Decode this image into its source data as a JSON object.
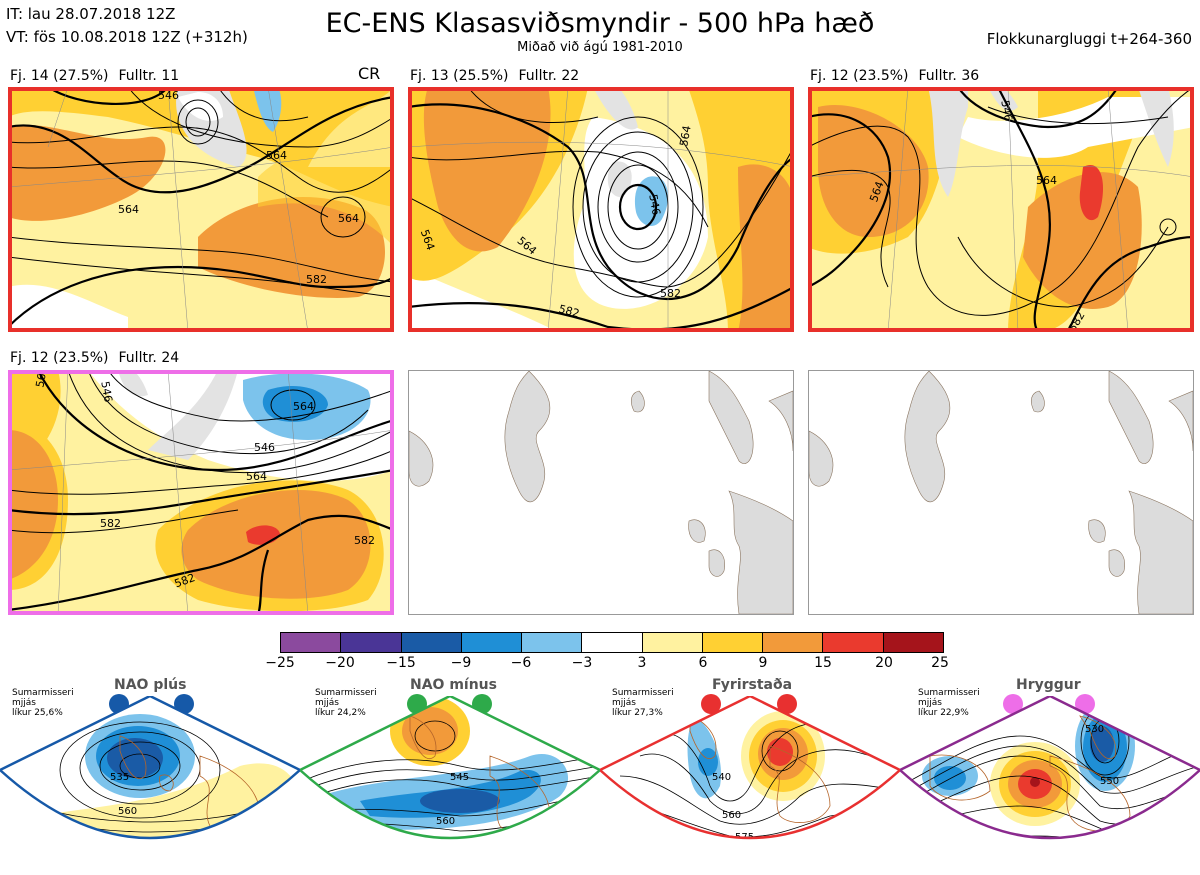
{
  "header": {
    "it_line": "IT: lau 28.07.2018 12Z",
    "vt_line": "VT: fös 10.08.2018 12Z  (+312h)",
    "title": "EC-ENS Klasasviðsmyndir - 500 hPa hæð",
    "subtitle": "Miðað við ágú 1981-2010",
    "window": "Flokkunargluggi t+264-360"
  },
  "panels": [
    {
      "cluster": "Fj. 14 (27.5%)",
      "rep": "Fulltr. 11",
      "tag": "CR",
      "frame_color": "#e8302a",
      "contours": [
        "546",
        "564",
        "564",
        "582",
        "564"
      ]
    },
    {
      "cluster": "Fj. 13 (25.5%)",
      "rep": "Fulltr. 22",
      "frame_color": "#e8302a",
      "contours": [
        "564",
        "564",
        "546",
        "564",
        "582",
        "582"
      ]
    },
    {
      "cluster": "Fj. 12 (23.5%)",
      "rep": "Fulltr. 36",
      "frame_color": "#e8302a",
      "contours": [
        "546",
        "564",
        "564",
        "582"
      ]
    },
    {
      "cluster": "Fj. 12 (23.5%)",
      "rep": "Fulltr. 24",
      "frame_color": "#ee6ee8",
      "contours": [
        "564",
        "546",
        "546",
        "564",
        "564",
        "582",
        "582",
        "582"
      ]
    }
  ],
  "colorbar": {
    "levels": [
      "−25",
      "−20",
      "−15",
      "−9",
      "−6",
      "−3",
      "3",
      "6",
      "9",
      "15",
      "20",
      "25"
    ],
    "colors": [
      "#8b4a9e",
      "#4a3596",
      "#1a5ba6",
      "#1f8fd6",
      "#7cc3ec",
      "#ffffff",
      "#fff2a0",
      "#ffd033",
      "#f29a3a",
      "#ea3a2e",
      "#a5141b"
    ]
  },
  "regimes": [
    {
      "name": "NAO plús",
      "info": "Sumarmisseri\nmjjás\nlíkur 25,6%",
      "color": "#1659a8",
      "contours": [
        "535",
        "560"
      ]
    },
    {
      "name": "NAO mínus",
      "info": "Sumarmisseri\nmjjás\nlíkur 24,2%",
      "color": "#2eaa4a",
      "contours": [
        "545",
        "560",
        "575"
      ]
    },
    {
      "name": "Fyrirstaða",
      "info": "Sumarmisseri\nmjjás\nlíkur 27,3%",
      "color": "#e83030",
      "contours": [
        "540",
        "560",
        "575"
      ]
    },
    {
      "name": "Hryggur",
      "info": "Sumarmisseri\nmjjás\nlíkur 22,9%",
      "color": "#8a2a8e",
      "contours": [
        "530",
        "550",
        "575"
      ]
    }
  ]
}
